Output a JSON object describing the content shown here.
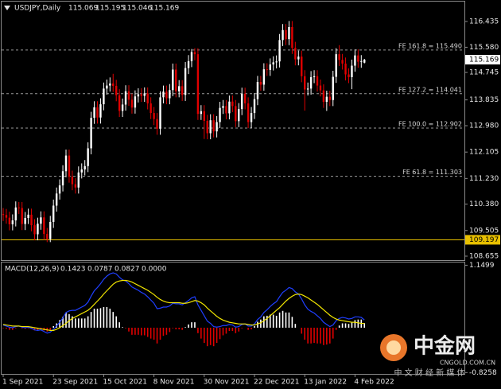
{
  "chart_data": [
    {
      "type": "candlestick",
      "title": "USDJPY,Daily",
      "categories": [
        "1 Sep 2021",
        null,
        null,
        null,
        null,
        null,
        null,
        null,
        null,
        null,
        null,
        null,
        null,
        null,
        null,
        null,
        "23 Sep 2021",
        null,
        null,
        null,
        null,
        null,
        null,
        null,
        null,
        null,
        null,
        null,
        null,
        null,
        null,
        null,
        "15 Oct 2021",
        null,
        null,
        null,
        null,
        null,
        null,
        null,
        null,
        null,
        null,
        null,
        null,
        null,
        null,
        null,
        "8 Nov 2021",
        null,
        null,
        null,
        null,
        null,
        null,
        null,
        null,
        null,
        null,
        null,
        null,
        null,
        null,
        null,
        "30 Nov 2021",
        null,
        null,
        null,
        null,
        null,
        null,
        null,
        null,
        null,
        null,
        null,
        null,
        null,
        null,
        null,
        "22 Dec 2021",
        null,
        null,
        null,
        null,
        null,
        null,
        null,
        null,
        null,
        null,
        null,
        null,
        null,
        null,
        null,
        "13 Jan 2022",
        null,
        null,
        null,
        null,
        null,
        null,
        null,
        null,
        null,
        null,
        null,
        null,
        null,
        null,
        null,
        "4 Feb 2022",
        null,
        null,
        null
      ],
      "open": [
        110.05,
        110.02,
        109.93,
        109.71,
        109.84,
        110.27,
        110.25,
        109.72,
        109.92,
        110.03,
        109.68,
        109.38,
        109.73,
        109.94,
        109.39,
        109.22,
        109.79,
        110.33,
        110.73,
        111.0,
        111.47,
        111.99,
        111.29,
        111.04,
        110.93,
        111.43,
        111.53,
        111.64,
        112.23,
        113.24,
        113.59,
        113.25,
        113.69,
        114.21,
        114.31,
        114.38,
        114.3,
        113.99,
        113.47,
        113.68,
        114.12,
        113.84,
        113.58,
        113.95,
        114.02,
        113.97,
        114.05,
        113.72,
        113.4,
        113.2,
        112.88,
        113.92,
        114.11,
        113.89,
        114.16,
        114.84,
        114.12,
        114.29,
        114.0,
        114.89,
        115.12,
        115.42,
        115.35,
        113.37,
        113.46,
        113.14,
        112.73,
        113.16,
        112.79,
        113.1,
        113.57,
        113.63,
        113.39,
        113.78,
        113.63,
        113.13,
        113.53,
        114.04,
        113.72,
        113.1,
        113.4,
        113.86,
        114.43,
        114.34,
        114.85,
        114.83,
        115.01,
        115.08,
        115.11,
        115.82,
        116.15,
        115.85,
        116.25,
        115.56,
        115.18,
        115.27,
        114.62,
        114.18,
        114.21,
        114.59,
        114.62,
        114.31,
        114.15,
        113.77,
        113.94,
        113.83,
        114.6,
        115.35,
        115.16,
        115.04,
        114.68,
        114.59,
        114.97,
        115.31,
        115.1,
        115.069
      ],
      "high": [
        110.25,
        110.22,
        110.13,
        110.04,
        110.47,
        110.45,
        110.45,
        110.12,
        110.23,
        110.23,
        109.88,
        109.93,
        110.14,
        110.14,
        109.59,
        109.99,
        110.53,
        110.93,
        111.2,
        111.67,
        112.19,
        112.19,
        111.49,
        111.24,
        111.63,
        111.73,
        111.84,
        112.43,
        113.44,
        113.79,
        113.79,
        113.89,
        114.41,
        114.51,
        114.58,
        114.7,
        114.5,
        114.19,
        113.88,
        114.32,
        114.32,
        114.04,
        114.15,
        114.22,
        114.22,
        114.25,
        114.25,
        113.92,
        113.6,
        113.4,
        114.12,
        114.31,
        114.31,
        114.36,
        115.04,
        115.04,
        114.49,
        114.49,
        115.09,
        115.32,
        115.52,
        115.55,
        115.55,
        113.66,
        113.66,
        113.34,
        113.36,
        113.36,
        113.3,
        113.77,
        113.83,
        113.83,
        113.98,
        113.98,
        113.83,
        113.73,
        114.24,
        114.24,
        113.92,
        113.6,
        114.06,
        114.63,
        114.63,
        115.05,
        115.05,
        115.21,
        115.28,
        115.31,
        116.02,
        116.35,
        116.35,
        116.45,
        116.45,
        115.76,
        115.47,
        115.47,
        114.82,
        114.41,
        114.79,
        114.82,
        114.82,
        114.51,
        114.35,
        114.14,
        114.14,
        114.8,
        115.55,
        115.65,
        115.36,
        115.24,
        114.88,
        115.17,
        115.51,
        115.51,
        115.32,
        115.195
      ],
      "low": [
        109.82,
        109.73,
        109.51,
        109.51,
        109.64,
        110.05,
        109.52,
        109.52,
        109.72,
        109.48,
        109.18,
        109.18,
        109.53,
        109.19,
        109.12,
        109.12,
        109.59,
        110.13,
        110.53,
        110.8,
        111.27,
        111.09,
        110.84,
        110.73,
        110.73,
        111.23,
        111.33,
        111.44,
        112.03,
        113.04,
        113.05,
        113.05,
        113.49,
        114.01,
        114.11,
        114.1,
        113.79,
        113.27,
        113.27,
        113.48,
        113.64,
        113.38,
        113.38,
        113.75,
        113.77,
        113.77,
        113.52,
        113.2,
        113.0,
        112.68,
        112.68,
        113.72,
        113.69,
        113.69,
        113.96,
        113.92,
        113.92,
        113.8,
        113.8,
        114.69,
        114.92,
        115.15,
        113.17,
        113.17,
        112.54,
        112.53,
        112.53,
        112.59,
        112.59,
        112.9,
        113.37,
        113.19,
        113.19,
        113.43,
        112.93,
        112.93,
        113.33,
        113.52,
        112.9,
        112.9,
        113.2,
        113.66,
        114.14,
        114.14,
        114.63,
        114.63,
        114.81,
        114.88,
        114.91,
        115.62,
        115.65,
        115.65,
        115.36,
        114.98,
        114.98,
        114.42,
        113.48,
        113.98,
        114.01,
        114.39,
        114.11,
        113.95,
        113.57,
        113.47,
        113.63,
        113.63,
        114.4,
        114.96,
        114.84,
        114.48,
        114.39,
        114.19,
        114.77,
        114.9,
        114.9,
        115.046
      ],
      "close": [
        110.02,
        109.93,
        109.71,
        109.84,
        110.27,
        110.25,
        109.72,
        109.92,
        110.03,
        109.68,
        109.38,
        109.73,
        109.94,
        109.39,
        109.22,
        109.79,
        110.33,
        110.73,
        111.0,
        111.47,
        111.99,
        111.29,
        111.04,
        110.93,
        111.43,
        111.53,
        111.64,
        112.23,
        113.24,
        113.59,
        113.25,
        113.69,
        114.21,
        114.31,
        114.38,
        114.3,
        113.99,
        113.47,
        113.68,
        114.12,
        113.84,
        113.58,
        113.95,
        114.02,
        113.97,
        114.05,
        113.72,
        113.4,
        113.2,
        112.88,
        113.92,
        114.11,
        113.89,
        114.16,
        114.84,
        114.12,
        114.29,
        114.0,
        114.89,
        115.12,
        115.42,
        115.35,
        113.37,
        113.46,
        113.14,
        112.73,
        113.16,
        112.79,
        113.1,
        113.57,
        113.63,
        113.39,
        113.78,
        113.63,
        113.13,
        113.53,
        114.04,
        113.72,
        113.1,
        113.4,
        113.86,
        114.43,
        114.34,
        114.85,
        114.83,
        115.01,
        115.08,
        115.11,
        115.82,
        116.15,
        115.85,
        116.25,
        115.56,
        115.18,
        115.27,
        114.62,
        114.18,
        114.21,
        114.59,
        114.62,
        114.31,
        114.15,
        113.77,
        113.94,
        113.83,
        114.6,
        115.35,
        115.16,
        115.04,
        114.68,
        114.59,
        114.97,
        115.31,
        115.1,
        115.12,
        115.169
      ],
      "up_color": "#ffffff",
      "down_color": "#e00000",
      "ylim": [
        108.523,
        117.094
      ],
      "yticks": [
        116.435,
        {
          "value": 115.58,
          "label": "115.580"
        },
        114.745,
        113.835,
        {
          "value": 112.98,
          "label": "112.980"
        },
        112.105,
        {
          "value": 111.23,
          "label": "111.230"
        },
        {
          "value": 110.38,
          "label": "110.380"
        },
        109.505,
        108.655
      ],
      "levels": [
        {
          "label": "FE 161.8 = 115.490",
          "value": 115.49
        },
        {
          "label": "FE 127.2 = 114.041",
          "value": 114.041
        },
        {
          "label": "FE 100.0 = 112.902",
          "value": 112.902
        },
        {
          "label": "FE 61.8 = 111.303",
          "value": 111.303
        }
      ],
      "level_color": "#9a9a9a",
      "support": {
        "value": 109.197,
        "color": "#e8c000"
      }
    },
    {
      "type": "macd",
      "title": "MACD(12,26,9)",
      "indicator_values": [
        0.1423,
        0.0787,
        0.0827,
        {
          "value": 0,
          "label": "0.0000"
        }
      ],
      "histogram": {
        "pos_color": "#ffffff",
        "neg_color": "#e00000",
        "values": [
          -0.01,
          -0.02,
          -0.04,
          -0.04,
          -0.01,
          0.0,
          -0.01,
          -0.02,
          -0.01,
          -0.02,
          -0.05,
          -0.05,
          -0.02,
          -0.05,
          -0.07,
          -0.04,
          0.03,
          0.08,
          0.14,
          0.2,
          0.28,
          0.25,
          0.21,
          0.17,
          0.17,
          0.17,
          0.17,
          0.21,
          0.29,
          0.35,
          0.35,
          0.36,
          0.38,
          0.38,
          0.35,
          0.29,
          0.21,
          0.1,
          0.01,
          -0.01,
          -0.07,
          -0.13,
          -0.13,
          -0.13,
          -0.14,
          -0.14,
          -0.17,
          -0.2,
          -0.22,
          -0.29,
          -0.22,
          -0.15,
          -0.13,
          -0.08,
          -0.01,
          -0.03,
          -0.03,
          -0.04,
          0.01,
          0.06,
          0.1,
          0.1,
          -0.1,
          -0.2,
          -0.28,
          -0.34,
          -0.32,
          -0.34,
          -0.28,
          -0.21,
          -0.14,
          -0.11,
          -0.06,
          -0.06,
          -0.1,
          -0.07,
          -0.01,
          0.0,
          -0.04,
          -0.03,
          0.03,
          0.11,
          0.15,
          0.21,
          0.22,
          0.24,
          0.24,
          0.22,
          0.28,
          0.31,
          0.28,
          0.28,
          0.2,
          0.07,
          0.0,
          -0.11,
          -0.22,
          -0.29,
          -0.29,
          -0.28,
          -0.29,
          -0.29,
          -0.32,
          -0.31,
          -0.29,
          -0.2,
          -0.04,
          0.04,
          0.08,
          0.08,
          0.07,
          0.1,
          0.14,
          0.15,
          0.15,
          0.0827
        ]
      },
      "lines": [
        {
          "color": "#1f3fff",
          "values": [
            0.05,
            0.03,
            0.01,
            0.0,
            0.02,
            0.03,
            0.01,
            0.0,
            0.01,
            -0.01,
            -0.04,
            -0.05,
            -0.04,
            -0.07,
            -0.1,
            -0.08,
            -0.03,
            0.03,
            0.1,
            0.18,
            0.28,
            0.31,
            0.32,
            0.32,
            0.35,
            0.38,
            0.41,
            0.47,
            0.58,
            0.68,
            0.74,
            0.81,
            0.89,
            0.95,
            0.99,
            1.01,
            0.99,
            0.93,
            0.88,
            0.86,
            0.81,
            0.75,
            0.72,
            0.69,
            0.65,
            0.62,
            0.57,
            0.51,
            0.45,
            0.35,
            0.36,
            0.38,
            0.38,
            0.4,
            0.45,
            0.44,
            0.44,
            0.42,
            0.46,
            0.5,
            0.55,
            0.57,
            0.42,
            0.32,
            0.22,
            0.12,
            0.08,
            0.02,
            0.01,
            0.02,
            0.04,
            0.04,
            0.06,
            0.05,
            0.01,
            0.02,
            0.06,
            0.07,
            0.03,
            0.03,
            0.07,
            0.15,
            0.2,
            0.28,
            0.33,
            0.39,
            0.44,
            0.48,
            0.57,
            0.65,
            0.69,
            0.74,
            0.72,
            0.66,
            0.62,
            0.53,
            0.42,
            0.34,
            0.3,
            0.27,
            0.22,
            0.17,
            0.1,
            0.06,
            0.02,
            0.05,
            0.13,
            0.17,
            0.19,
            0.18,
            0.16,
            0.17,
            0.2,
            0.2,
            0.19,
            0.1423
          ]
        },
        {
          "color": "#f2e600",
          "values": [
            0.06,
            0.05,
            0.04,
            0.03,
            0.03,
            0.03,
            0.02,
            0.02,
            0.02,
            0.01,
            0.0,
            -0.01,
            -0.02,
            -0.03,
            -0.04,
            -0.05,
            -0.05,
            -0.03,
            0.0,
            0.04,
            0.08,
            0.13,
            0.17,
            0.2,
            0.23,
            0.26,
            0.29,
            0.32,
            0.37,
            0.43,
            0.49,
            0.55,
            0.62,
            0.68,
            0.74,
            0.8,
            0.84,
            0.86,
            0.87,
            0.87,
            0.86,
            0.84,
            0.81,
            0.78,
            0.75,
            0.72,
            0.69,
            0.65,
            0.61,
            0.56,
            0.52,
            0.49,
            0.47,
            0.46,
            0.46,
            0.46,
            0.46,
            0.45,
            0.45,
            0.46,
            0.48,
            0.5,
            0.49,
            0.46,
            0.42,
            0.36,
            0.31,
            0.26,
            0.21,
            0.17,
            0.14,
            0.12,
            0.1,
            0.09,
            0.08,
            0.07,
            0.07,
            0.07,
            0.06,
            0.05,
            0.05,
            0.07,
            0.09,
            0.13,
            0.17,
            0.22,
            0.27,
            0.32,
            0.37,
            0.43,
            0.49,
            0.54,
            0.58,
            0.61,
            0.62,
            0.61,
            0.58,
            0.55,
            0.51,
            0.47,
            0.43,
            0.38,
            0.33,
            0.28,
            0.23,
            0.19,
            0.16,
            0.14,
            0.13,
            0.12,
            0.11,
            0.1,
            0.1,
            0.09,
            0.08,
            0.0787
          ]
        }
      ],
      "ylim": [
        -0.85,
        1.2
      ],
      "yticks": [
        1.1499,
        -0.8258
      ]
    }
  ],
  "watermark": {
    "logo": "中金网",
    "site": "CNGOLD.COM.CN",
    "tagline": "中 文 财 经 新 媒 体"
  }
}
